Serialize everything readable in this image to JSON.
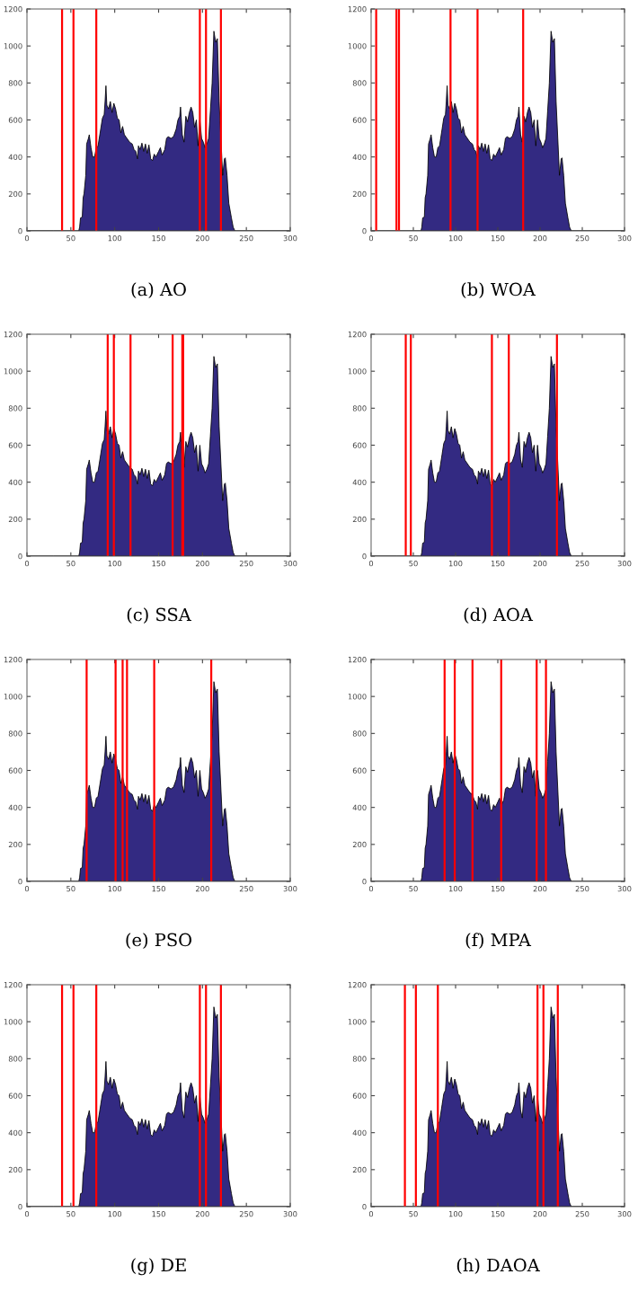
{
  "chart_data": [
    {
      "type": "area",
      "title": "(a) AO",
      "xlim": [
        0,
        300
      ],
      "ylim": [
        0,
        1200
      ],
      "xticks": [
        0,
        50,
        100,
        150,
        200,
        250,
        300
      ],
      "yticks": [
        0,
        200,
        400,
        600,
        800,
        1000,
        1200
      ],
      "grid": false,
      "x": [
        0,
        30,
        59,
        60,
        61,
        63,
        64,
        65,
        67,
        68,
        70,
        71,
        73,
        75,
        77,
        79,
        81,
        84,
        86,
        88,
        89,
        90,
        91,
        93,
        95,
        97,
        99,
        101,
        103,
        105,
        107,
        109,
        111,
        114,
        117,
        120,
        122,
        124,
        126,
        127,
        129,
        131,
        133,
        135,
        137,
        139,
        141,
        143,
        145,
        147,
        150,
        152,
        154,
        157,
        159,
        161,
        164,
        167,
        170,
        172,
        174,
        175,
        177,
        179,
        181,
        183,
        185,
        187,
        189,
        191,
        193,
        195,
        197,
        199,
        201,
        203,
        205,
        207,
        209,
        211,
        213,
        215,
        217,
        219,
        221,
        223,
        225,
        226,
        228,
        230,
        233,
        235,
        237,
        300
      ],
      "series": [
        {
          "color": "#332a82",
          "values": [
            0,
            0,
            0,
            20,
            70,
            75,
            180,
            200,
            300,
            470,
            500,
            520,
            450,
            400,
            400,
            450,
            460,
            550,
            610,
            630,
            700,
            785,
            680,
            660,
            700,
            640,
            690,
            660,
            610,
            600,
            530,
            565,
            520,
            500,
            480,
            470,
            440,
            430,
            390,
            460,
            440,
            475,
            430,
            470,
            420,
            465,
            390,
            380,
            415,
            400,
            430,
            450,
            410,
            440,
            500,
            510,
            500,
            510,
            550,
            600,
            620,
            670,
            520,
            480,
            620,
            590,
            640,
            670,
            640,
            560,
            600,
            460,
            600,
            500,
            480,
            450,
            470,
            500,
            650,
            800,
            1080,
            1020,
            1040,
            700,
            500,
            300,
            390,
            395,
            300,
            150,
            70,
            20,
            0,
            0
          ]
        }
      ],
      "ref_lines": [
        {
          "axis": "x",
          "value": 40,
          "color": "#ff0000"
        },
        {
          "axis": "x",
          "value": 53,
          "color": "#ff0000"
        },
        {
          "axis": "x",
          "value": 79,
          "color": "#ff0000"
        },
        {
          "axis": "x",
          "value": 197,
          "color": "#ff0000"
        },
        {
          "axis": "x",
          "value": 204,
          "color": "#ff0000"
        },
        {
          "axis": "x",
          "value": 221,
          "color": "#ff0000"
        }
      ]
    },
    {
      "type": "area",
      "title": "(b) WOA",
      "xlim": [
        0,
        300
      ],
      "ylim": [
        0,
        1200
      ],
      "xticks": [
        0,
        50,
        100,
        150,
        200,
        250,
        300
      ],
      "yticks": [
        0,
        200,
        400,
        600,
        800,
        1000,
        1200
      ],
      "grid": false,
      "x": [
        0,
        30,
        59,
        60,
        61,
        63,
        64,
        65,
        67,
        68,
        70,
        71,
        73,
        75,
        77,
        79,
        81,
        84,
        86,
        88,
        89,
        90,
        91,
        93,
        95,
        97,
        99,
        101,
        103,
        105,
        107,
        109,
        111,
        114,
        117,
        120,
        122,
        124,
        126,
        127,
        129,
        131,
        133,
        135,
        137,
        139,
        141,
        143,
        145,
        147,
        150,
        152,
        154,
        157,
        159,
        161,
        164,
        167,
        170,
        172,
        174,
        175,
        177,
        179,
        181,
        183,
        185,
        187,
        189,
        191,
        193,
        195,
        197,
        199,
        201,
        203,
        205,
        207,
        209,
        211,
        213,
        215,
        217,
        219,
        221,
        223,
        225,
        226,
        228,
        230,
        233,
        235,
        237,
        300
      ],
      "series": [
        {
          "color": "#332a82",
          "values": [
            0,
            0,
            0,
            20,
            70,
            75,
            180,
            200,
            300,
            470,
            500,
            520,
            450,
            400,
            400,
            450,
            460,
            550,
            610,
            630,
            700,
            785,
            680,
            660,
            700,
            640,
            690,
            660,
            610,
            600,
            530,
            565,
            520,
            500,
            480,
            470,
            440,
            430,
            390,
            460,
            440,
            475,
            430,
            470,
            420,
            465,
            390,
            380,
            415,
            400,
            430,
            450,
            410,
            440,
            500,
            510,
            500,
            510,
            550,
            600,
            620,
            670,
            520,
            480,
            620,
            590,
            640,
            670,
            640,
            560,
            600,
            460,
            600,
            500,
            480,
            450,
            470,
            500,
            650,
            800,
            1080,
            1020,
            1040,
            700,
            500,
            300,
            390,
            395,
            300,
            150,
            70,
            20,
            0,
            0
          ]
        }
      ],
      "ref_lines": [
        {
          "axis": "x",
          "value": 6,
          "color": "#ff0000"
        },
        {
          "axis": "x",
          "value": 30,
          "color": "#ff0000"
        },
        {
          "axis": "x",
          "value": 33,
          "color": "#ff0000"
        },
        {
          "axis": "x",
          "value": 94,
          "color": "#ff0000"
        },
        {
          "axis": "x",
          "value": 126,
          "color": "#ff0000"
        },
        {
          "axis": "x",
          "value": 180,
          "color": "#ff0000"
        }
      ]
    },
    {
      "type": "area",
      "title": "(c) SSA",
      "xlim": [
        0,
        300
      ],
      "ylim": [
        0,
        1200
      ],
      "xticks": [
        0,
        50,
        100,
        150,
        200,
        250,
        300
      ],
      "yticks": [
        0,
        200,
        400,
        600,
        800,
        1000,
        1200
      ],
      "grid": false,
      "x": [
        0,
        30,
        59,
        60,
        61,
        63,
        64,
        65,
        67,
        68,
        70,
        71,
        73,
        75,
        77,
        79,
        81,
        84,
        86,
        88,
        89,
        90,
        91,
        93,
        95,
        97,
        99,
        101,
        103,
        105,
        107,
        109,
        111,
        114,
        117,
        120,
        122,
        124,
        126,
        127,
        129,
        131,
        133,
        135,
        137,
        139,
        141,
        143,
        145,
        147,
        150,
        152,
        154,
        157,
        159,
        161,
        164,
        167,
        170,
        172,
        174,
        175,
        177,
        179,
        181,
        183,
        185,
        187,
        189,
        191,
        193,
        195,
        197,
        199,
        201,
        203,
        205,
        207,
        209,
        211,
        213,
        215,
        217,
        219,
        221,
        223,
        225,
        226,
        228,
        230,
        233,
        235,
        237,
        300
      ],
      "series": [
        {
          "color": "#332a82",
          "values": [
            0,
            0,
            0,
            20,
            70,
            75,
            180,
            200,
            300,
            470,
            500,
            520,
            450,
            400,
            400,
            450,
            460,
            550,
            610,
            630,
            700,
            785,
            680,
            660,
            700,
            640,
            690,
            660,
            610,
            600,
            530,
            565,
            520,
            500,
            480,
            470,
            440,
            430,
            390,
            460,
            440,
            475,
            430,
            470,
            420,
            465,
            390,
            380,
            415,
            400,
            430,
            450,
            410,
            440,
            500,
            510,
            500,
            510,
            550,
            600,
            620,
            670,
            520,
            480,
            620,
            590,
            640,
            670,
            640,
            560,
            600,
            460,
            600,
            500,
            480,
            450,
            470,
            500,
            650,
            800,
            1080,
            1020,
            1040,
            700,
            500,
            300,
            390,
            395,
            300,
            150,
            70,
            20,
            0,
            0
          ]
        }
      ],
      "ref_lines": [
        {
          "axis": "x",
          "value": 92,
          "color": "#ff0000"
        },
        {
          "axis": "x",
          "value": 99,
          "color": "#ff0000"
        },
        {
          "axis": "x",
          "value": 118,
          "color": "#ff0000"
        },
        {
          "axis": "x",
          "value": 166,
          "color": "#ff0000"
        },
        {
          "axis": "x",
          "value": 177,
          "color": "#ff0000"
        },
        {
          "axis": "x",
          "value": 178,
          "color": "#ff0000"
        }
      ]
    },
    {
      "type": "area",
      "title": "(d) AOA",
      "xlim": [
        0,
        300
      ],
      "ylim": [
        0,
        1200
      ],
      "xticks": [
        0,
        50,
        100,
        150,
        200,
        250,
        300
      ],
      "yticks": [
        0,
        200,
        400,
        600,
        800,
        1000,
        1200
      ],
      "grid": false,
      "x": [
        0,
        30,
        59,
        60,
        61,
        63,
        64,
        65,
        67,
        68,
        70,
        71,
        73,
        75,
        77,
        79,
        81,
        84,
        86,
        88,
        89,
        90,
        91,
        93,
        95,
        97,
        99,
        101,
        103,
        105,
        107,
        109,
        111,
        114,
        117,
        120,
        122,
        124,
        126,
        127,
        129,
        131,
        133,
        135,
        137,
        139,
        141,
        143,
        145,
        147,
        150,
        152,
        154,
        157,
        159,
        161,
        164,
        167,
        170,
        172,
        174,
        175,
        177,
        179,
        181,
        183,
        185,
        187,
        189,
        191,
        193,
        195,
        197,
        199,
        201,
        203,
        205,
        207,
        209,
        211,
        213,
        215,
        217,
        219,
        221,
        223,
        225,
        226,
        228,
        230,
        233,
        235,
        237,
        300
      ],
      "series": [
        {
          "color": "#332a82",
          "values": [
            0,
            0,
            0,
            20,
            70,
            75,
            180,
            200,
            300,
            470,
            500,
            520,
            450,
            400,
            400,
            450,
            460,
            550,
            610,
            630,
            700,
            785,
            680,
            660,
            700,
            640,
            690,
            660,
            610,
            600,
            530,
            565,
            520,
            500,
            480,
            470,
            440,
            430,
            390,
            460,
            440,
            475,
            430,
            470,
            420,
            465,
            390,
            380,
            415,
            400,
            430,
            450,
            410,
            440,
            500,
            510,
            500,
            510,
            550,
            600,
            620,
            670,
            520,
            480,
            620,
            590,
            640,
            670,
            640,
            560,
            600,
            460,
            600,
            500,
            480,
            450,
            470,
            500,
            650,
            800,
            1080,
            1020,
            1040,
            700,
            500,
            300,
            390,
            395,
            300,
            150,
            70,
            20,
            0,
            0
          ]
        }
      ],
      "ref_lines": [
        {
          "axis": "x",
          "value": 41,
          "color": "#ff0000"
        },
        {
          "axis": "x",
          "value": 47,
          "color": "#ff0000"
        },
        {
          "axis": "x",
          "value": 143,
          "color": "#ff0000"
        },
        {
          "axis": "x",
          "value": 163,
          "color": "#ff0000"
        },
        {
          "axis": "x",
          "value": 220,
          "color": "#ff0000"
        }
      ]
    },
    {
      "type": "area",
      "title": "(e) PSO",
      "xlim": [
        0,
        300
      ],
      "ylim": [
        0,
        1200
      ],
      "xticks": [
        0,
        50,
        100,
        150,
        200,
        250,
        300
      ],
      "yticks": [
        0,
        200,
        400,
        600,
        800,
        1000,
        1200
      ],
      "grid": false,
      "x": [
        0,
        30,
        59,
        60,
        61,
        63,
        64,
        65,
        67,
        68,
        70,
        71,
        73,
        75,
        77,
        79,
        81,
        84,
        86,
        88,
        89,
        90,
        91,
        93,
        95,
        97,
        99,
        101,
        103,
        105,
        107,
        109,
        111,
        114,
        117,
        120,
        122,
        124,
        126,
        127,
        129,
        131,
        133,
        135,
        137,
        139,
        141,
        143,
        145,
        147,
        150,
        152,
        154,
        157,
        159,
        161,
        164,
        167,
        170,
        172,
        174,
        175,
        177,
        179,
        181,
        183,
        185,
        187,
        189,
        191,
        193,
        195,
        197,
        199,
        201,
        203,
        205,
        207,
        209,
        211,
        213,
        215,
        217,
        219,
        221,
        223,
        225,
        226,
        228,
        230,
        233,
        235,
        237,
        300
      ],
      "series": [
        {
          "color": "#332a82",
          "values": [
            0,
            0,
            0,
            20,
            70,
            75,
            180,
            200,
            300,
            470,
            500,
            520,
            450,
            400,
            400,
            450,
            460,
            550,
            610,
            630,
            700,
            785,
            680,
            660,
            700,
            640,
            690,
            660,
            610,
            600,
            530,
            565,
            520,
            500,
            480,
            470,
            440,
            430,
            390,
            460,
            440,
            475,
            430,
            470,
            420,
            465,
            390,
            380,
            415,
            400,
            430,
            450,
            410,
            440,
            500,
            510,
            500,
            510,
            550,
            600,
            620,
            670,
            520,
            480,
            620,
            590,
            640,
            670,
            640,
            560,
            600,
            460,
            600,
            500,
            480,
            450,
            470,
            500,
            650,
            800,
            1080,
            1020,
            1040,
            700,
            500,
            300,
            390,
            395,
            300,
            150,
            70,
            20,
            0,
            0
          ]
        }
      ],
      "ref_lines": [
        {
          "axis": "x",
          "value": 68,
          "color": "#ff0000"
        },
        {
          "axis": "x",
          "value": 101,
          "color": "#ff0000"
        },
        {
          "axis": "x",
          "value": 109,
          "color": "#ff0000"
        },
        {
          "axis": "x",
          "value": 114,
          "color": "#ff0000"
        },
        {
          "axis": "x",
          "value": 145,
          "color": "#ff0000"
        },
        {
          "axis": "x",
          "value": 210,
          "color": "#ff0000"
        }
      ]
    },
    {
      "type": "area",
      "title": "(f) MPA",
      "xlim": [
        0,
        300
      ],
      "ylim": [
        0,
        1200
      ],
      "xticks": [
        0,
        50,
        100,
        150,
        200,
        250,
        300
      ],
      "yticks": [
        0,
        200,
        400,
        600,
        800,
        1000,
        1200
      ],
      "grid": false,
      "x": [
        0,
        30,
        59,
        60,
        61,
        63,
        64,
        65,
        67,
        68,
        70,
        71,
        73,
        75,
        77,
        79,
        81,
        84,
        86,
        88,
        89,
        90,
        91,
        93,
        95,
        97,
        99,
        101,
        103,
        105,
        107,
        109,
        111,
        114,
        117,
        120,
        122,
        124,
        126,
        127,
        129,
        131,
        133,
        135,
        137,
        139,
        141,
        143,
        145,
        147,
        150,
        152,
        154,
        157,
        159,
        161,
        164,
        167,
        170,
        172,
        174,
        175,
        177,
        179,
        181,
        183,
        185,
        187,
        189,
        191,
        193,
        195,
        197,
        199,
        201,
        203,
        205,
        207,
        209,
        211,
        213,
        215,
        217,
        219,
        221,
        223,
        225,
        226,
        228,
        230,
        233,
        235,
        237,
        300
      ],
      "series": [
        {
          "color": "#332a82",
          "values": [
            0,
            0,
            0,
            20,
            70,
            75,
            180,
            200,
            300,
            470,
            500,
            520,
            450,
            400,
            400,
            450,
            460,
            550,
            610,
            630,
            700,
            785,
            680,
            660,
            700,
            640,
            690,
            660,
            610,
            600,
            530,
            565,
            520,
            500,
            480,
            470,
            440,
            430,
            390,
            460,
            440,
            475,
            430,
            470,
            420,
            465,
            390,
            380,
            415,
            400,
            430,
            450,
            410,
            440,
            500,
            510,
            500,
            510,
            550,
            600,
            620,
            670,
            520,
            480,
            620,
            590,
            640,
            670,
            640,
            560,
            600,
            460,
            600,
            500,
            480,
            450,
            470,
            500,
            650,
            800,
            1080,
            1020,
            1040,
            700,
            500,
            300,
            390,
            395,
            300,
            150,
            70,
            20,
            0,
            0
          ]
        }
      ],
      "ref_lines": [
        {
          "axis": "x",
          "value": 87,
          "color": "#ff0000"
        },
        {
          "axis": "x",
          "value": 99,
          "color": "#ff0000"
        },
        {
          "axis": "x",
          "value": 120,
          "color": "#ff0000"
        },
        {
          "axis": "x",
          "value": 154,
          "color": "#ff0000"
        },
        {
          "axis": "x",
          "value": 196,
          "color": "#ff0000"
        },
        {
          "axis": "x",
          "value": 207,
          "color": "#ff0000"
        }
      ]
    },
    {
      "type": "area",
      "title": "(g) DE",
      "xlim": [
        0,
        300
      ],
      "ylim": [
        0,
        1200
      ],
      "xticks": [
        0,
        50,
        100,
        150,
        200,
        250,
        300
      ],
      "yticks": [
        0,
        200,
        400,
        600,
        800,
        1000,
        1200
      ],
      "grid": false,
      "x": [
        0,
        30,
        59,
        60,
        61,
        63,
        64,
        65,
        67,
        68,
        70,
        71,
        73,
        75,
        77,
        79,
        81,
        84,
        86,
        88,
        89,
        90,
        91,
        93,
        95,
        97,
        99,
        101,
        103,
        105,
        107,
        109,
        111,
        114,
        117,
        120,
        122,
        124,
        126,
        127,
        129,
        131,
        133,
        135,
        137,
        139,
        141,
        143,
        145,
        147,
        150,
        152,
        154,
        157,
        159,
        161,
        164,
        167,
        170,
        172,
        174,
        175,
        177,
        179,
        181,
        183,
        185,
        187,
        189,
        191,
        193,
        195,
        197,
        199,
        201,
        203,
        205,
        207,
        209,
        211,
        213,
        215,
        217,
        219,
        221,
        223,
        225,
        226,
        228,
        230,
        233,
        235,
        237,
        300
      ],
      "series": [
        {
          "color": "#332a82",
          "values": [
            0,
            0,
            0,
            20,
            70,
            75,
            180,
            200,
            300,
            470,
            500,
            520,
            450,
            400,
            400,
            450,
            460,
            550,
            610,
            630,
            700,
            785,
            680,
            660,
            700,
            640,
            690,
            660,
            610,
            600,
            530,
            565,
            520,
            500,
            480,
            470,
            440,
            430,
            390,
            460,
            440,
            475,
            430,
            470,
            420,
            465,
            390,
            380,
            415,
            400,
            430,
            450,
            410,
            440,
            500,
            510,
            500,
            510,
            550,
            600,
            620,
            670,
            520,
            480,
            620,
            590,
            640,
            670,
            640,
            560,
            600,
            460,
            600,
            500,
            480,
            450,
            470,
            500,
            650,
            800,
            1080,
            1020,
            1040,
            700,
            500,
            300,
            390,
            395,
            300,
            150,
            70,
            20,
            0,
            0
          ]
        }
      ],
      "ref_lines": [
        {
          "axis": "x",
          "value": 40,
          "color": "#ff0000"
        },
        {
          "axis": "x",
          "value": 53,
          "color": "#ff0000"
        },
        {
          "axis": "x",
          "value": 79,
          "color": "#ff0000"
        },
        {
          "axis": "x",
          "value": 197,
          "color": "#ff0000"
        },
        {
          "axis": "x",
          "value": 204,
          "color": "#ff0000"
        },
        {
          "axis": "x",
          "value": 221,
          "color": "#ff0000"
        }
      ]
    },
    {
      "type": "area",
      "title": "(h) DAOA",
      "xlim": [
        0,
        300
      ],
      "ylim": [
        0,
        1200
      ],
      "xticks": [
        0,
        50,
        100,
        150,
        200,
        250,
        300
      ],
      "yticks": [
        0,
        200,
        400,
        600,
        800,
        1000,
        1200
      ],
      "grid": false,
      "x": [
        0,
        30,
        59,
        60,
        61,
        63,
        64,
        65,
        67,
        68,
        70,
        71,
        73,
        75,
        77,
        79,
        81,
        84,
        86,
        88,
        89,
        90,
        91,
        93,
        95,
        97,
        99,
        101,
        103,
        105,
        107,
        109,
        111,
        114,
        117,
        120,
        122,
        124,
        126,
        127,
        129,
        131,
        133,
        135,
        137,
        139,
        141,
        143,
        145,
        147,
        150,
        152,
        154,
        157,
        159,
        161,
        164,
        167,
        170,
        172,
        174,
        175,
        177,
        179,
        181,
        183,
        185,
        187,
        189,
        191,
        193,
        195,
        197,
        199,
        201,
        203,
        205,
        207,
        209,
        211,
        213,
        215,
        217,
        219,
        221,
        223,
        225,
        226,
        228,
        230,
        233,
        235,
        237,
        300
      ],
      "series": [
        {
          "color": "#332a82",
          "values": [
            0,
            0,
            0,
            20,
            70,
            75,
            180,
            200,
            300,
            470,
            500,
            520,
            450,
            400,
            400,
            450,
            460,
            550,
            610,
            630,
            700,
            785,
            680,
            660,
            700,
            640,
            690,
            660,
            610,
            600,
            530,
            565,
            520,
            500,
            480,
            470,
            440,
            430,
            390,
            460,
            440,
            475,
            430,
            470,
            420,
            465,
            390,
            380,
            415,
            400,
            430,
            450,
            410,
            440,
            500,
            510,
            500,
            510,
            550,
            600,
            620,
            670,
            520,
            480,
            620,
            590,
            640,
            670,
            640,
            560,
            600,
            460,
            600,
            500,
            480,
            450,
            470,
            500,
            650,
            800,
            1080,
            1020,
            1040,
            700,
            500,
            300,
            390,
            395,
            300,
            150,
            70,
            20,
            0,
            0
          ]
        }
      ],
      "ref_lines": [
        {
          "axis": "x",
          "value": 40,
          "color": "#ff0000"
        },
        {
          "axis": "x",
          "value": 53,
          "color": "#ff0000"
        },
        {
          "axis": "x",
          "value": 79,
          "color": "#ff0000"
        },
        {
          "axis": "x",
          "value": 197,
          "color": "#ff0000"
        },
        {
          "axis": "x",
          "value": 204,
          "color": "#ff0000"
        },
        {
          "axis": "x",
          "value": 221,
          "color": "#ff0000"
        }
      ]
    }
  ]
}
